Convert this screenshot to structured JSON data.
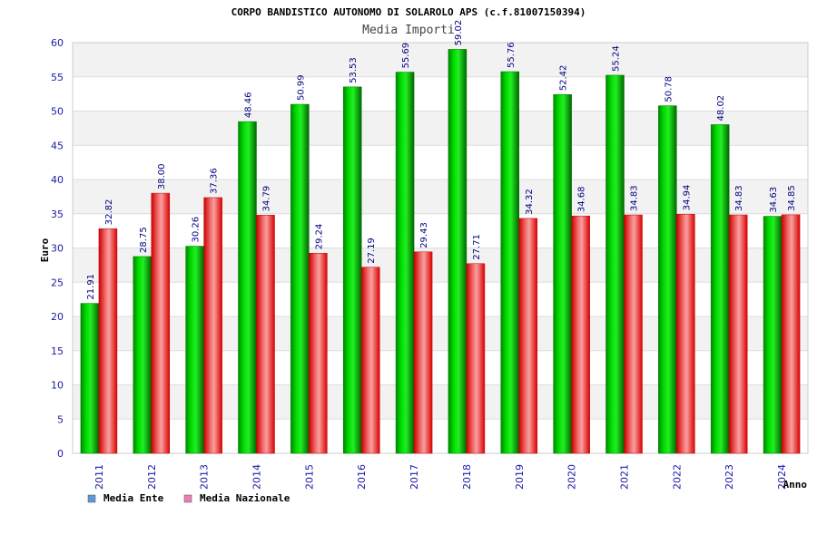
{
  "chart_data": {
    "type": "bar",
    "title": "CORPO BANDISTICO AUTONOMO DI SOLAROLO APS (c.f.81007150394)",
    "subtitle": "Media Importi",
    "xlabel": "Anno",
    "ylabel": "Euro",
    "ylim": [
      0,
      60
    ],
    "yticks": [
      0,
      5,
      10,
      15,
      20,
      25,
      30,
      35,
      40,
      45,
      50,
      55,
      60
    ],
    "grid": true,
    "legend_position": "bottom-left",
    "categories": [
      "2011",
      "2012",
      "2013",
      "2014",
      "2015",
      "2016",
      "2017",
      "2018",
      "2019",
      "2020",
      "2021",
      "2022",
      "2023",
      "2024"
    ],
    "series": [
      {
        "name": "Media Ente",
        "color": "#00cc00",
        "legend_color": "#5b9bd5",
        "values": [
          21.91,
          28.75,
          30.26,
          48.46,
          50.99,
          53.53,
          55.69,
          59.02,
          55.76,
          52.42,
          55.24,
          50.78,
          48.02,
          34.63
        ],
        "labels": [
          "21.91",
          "28.75",
          "30.26",
          "48.46",
          "50.99",
          "53.53",
          "55.69",
          "59.02",
          "55.76",
          "52.42",
          "55.24",
          "50.78",
          "48.02",
          "34.63"
        ]
      },
      {
        "name": "Media Nazionale",
        "color": "#ee1111",
        "legend_color": "#e87fb0",
        "values": [
          32.82,
          38.0,
          37.36,
          34.79,
          29.24,
          27.19,
          29.43,
          27.71,
          34.32,
          34.68,
          34.83,
          34.94,
          34.83,
          34.85
        ],
        "labels": [
          "32.82",
          "38.00",
          "37.36",
          "34.79",
          "29.24",
          "27.19",
          "29.43",
          "27.71",
          "34.32",
          "34.68",
          "34.83",
          "34.94",
          "34.83",
          "34.85"
        ]
      }
    ]
  }
}
